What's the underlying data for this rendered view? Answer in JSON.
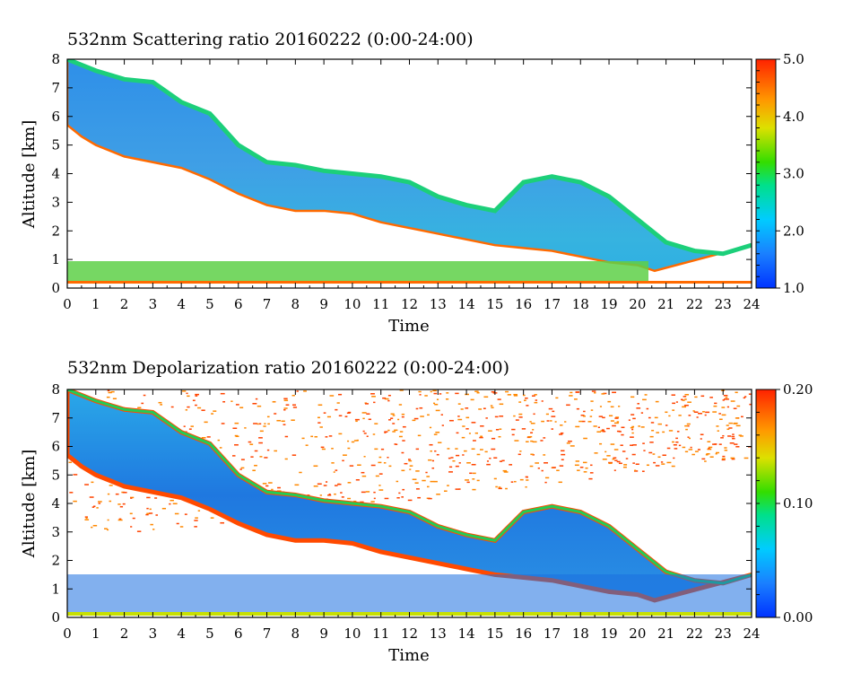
{
  "chart_data": [
    {
      "type": "heatmap",
      "title": "532nm Scattering ratio  20160222 (0:00-24:00)",
      "xlabel": "Time",
      "ylabel": "Altitude [km]",
      "xlim": [
        0,
        24
      ],
      "ylim": [
        0,
        8
      ],
      "x_ticks": [
        0,
        1,
        2,
        3,
        4,
        5,
        6,
        7,
        8,
        9,
        10,
        11,
        12,
        13,
        14,
        15,
        16,
        17,
        18,
        19,
        20,
        21,
        22,
        23,
        24
      ],
      "y_ticks": [
        0,
        1,
        2,
        3,
        4,
        5,
        6,
        7,
        8
      ],
      "colorbar": {
        "min": 1.0,
        "max": 5.0,
        "ticks": [
          "1.0",
          "2.0",
          "3.0",
          "4.0",
          "5.0"
        ]
      },
      "cloud_base_km": [
        {
          "x": 0,
          "y": 5.7
        },
        {
          "x": 0.5,
          "y": 5.3
        },
        {
          "x": 1,
          "y": 5.0
        },
        {
          "x": 2,
          "y": 4.6
        },
        {
          "x": 3,
          "y": 4.4
        },
        {
          "x": 4,
          "y": 4.2
        },
        {
          "x": 5,
          "y": 3.8
        },
        {
          "x": 6,
          "y": 3.3
        },
        {
          "x": 7,
          "y": 2.9
        },
        {
          "x": 8,
          "y": 2.7
        },
        {
          "x": 9,
          "y": 2.7
        },
        {
          "x": 10,
          "y": 2.6
        },
        {
          "x": 11,
          "y": 2.3
        },
        {
          "x": 12,
          "y": 2.1
        },
        {
          "x": 13,
          "y": 1.9
        },
        {
          "x": 14,
          "y": 1.7
        },
        {
          "x": 15,
          "y": 1.5
        },
        {
          "x": 16,
          "y": 1.4
        },
        {
          "x": 17,
          "y": 1.3
        },
        {
          "x": 18,
          "y": 1.1
        },
        {
          "x": 19,
          "y": 0.9
        },
        {
          "x": 20,
          "y": 0.8
        },
        {
          "x": 20.6,
          "y": 0.6
        }
      ],
      "cloud_top_km": [
        {
          "x": 0,
          "y": 8.0
        },
        {
          "x": 1,
          "y": 7.6
        },
        {
          "x": 2,
          "y": 7.3
        },
        {
          "x": 3,
          "y": 7.2
        },
        {
          "x": 4,
          "y": 6.5
        },
        {
          "x": 5,
          "y": 6.1
        },
        {
          "x": 6,
          "y": 5.0
        },
        {
          "x": 7,
          "y": 4.4
        },
        {
          "x": 8,
          "y": 4.3
        },
        {
          "x": 9,
          "y": 4.1
        },
        {
          "x": 10,
          "y": 4.0
        },
        {
          "x": 11,
          "y": 3.9
        },
        {
          "x": 12,
          "y": 3.7
        },
        {
          "x": 13,
          "y": 3.2
        },
        {
          "x": 14,
          "y": 2.9
        },
        {
          "x": 15,
          "y": 2.7
        },
        {
          "x": 16,
          "y": 3.7
        },
        {
          "x": 17,
          "y": 3.9
        },
        {
          "x": 18,
          "y": 3.7
        },
        {
          "x": 19,
          "y": 3.2
        },
        {
          "x": 20,
          "y": 2.4
        },
        {
          "x": 21,
          "y": 1.6
        },
        {
          "x": 22,
          "y": 1.3
        },
        {
          "x": 23,
          "y": 1.2
        },
        {
          "x": 24,
          "y": 1.5
        }
      ]
    },
    {
      "type": "heatmap",
      "title": "532nm Depolarization ratio  20160222 (0:00-24:00)",
      "xlabel": "Time",
      "ylabel": "Altitude [km]",
      "xlim": [
        0,
        24
      ],
      "ylim": [
        0,
        8
      ],
      "x_ticks": [
        0,
        1,
        2,
        3,
        4,
        5,
        6,
        7,
        8,
        9,
        10,
        11,
        12,
        13,
        14,
        15,
        16,
        17,
        18,
        19,
        20,
        21,
        22,
        23,
        24
      ],
      "y_ticks": [
        0,
        1,
        2,
        3,
        4,
        5,
        6,
        7,
        8
      ],
      "colorbar": {
        "min": 0.0,
        "max": 0.2,
        "ticks": [
          "0.00",
          "0.10",
          "0.20"
        ]
      }
    }
  ]
}
